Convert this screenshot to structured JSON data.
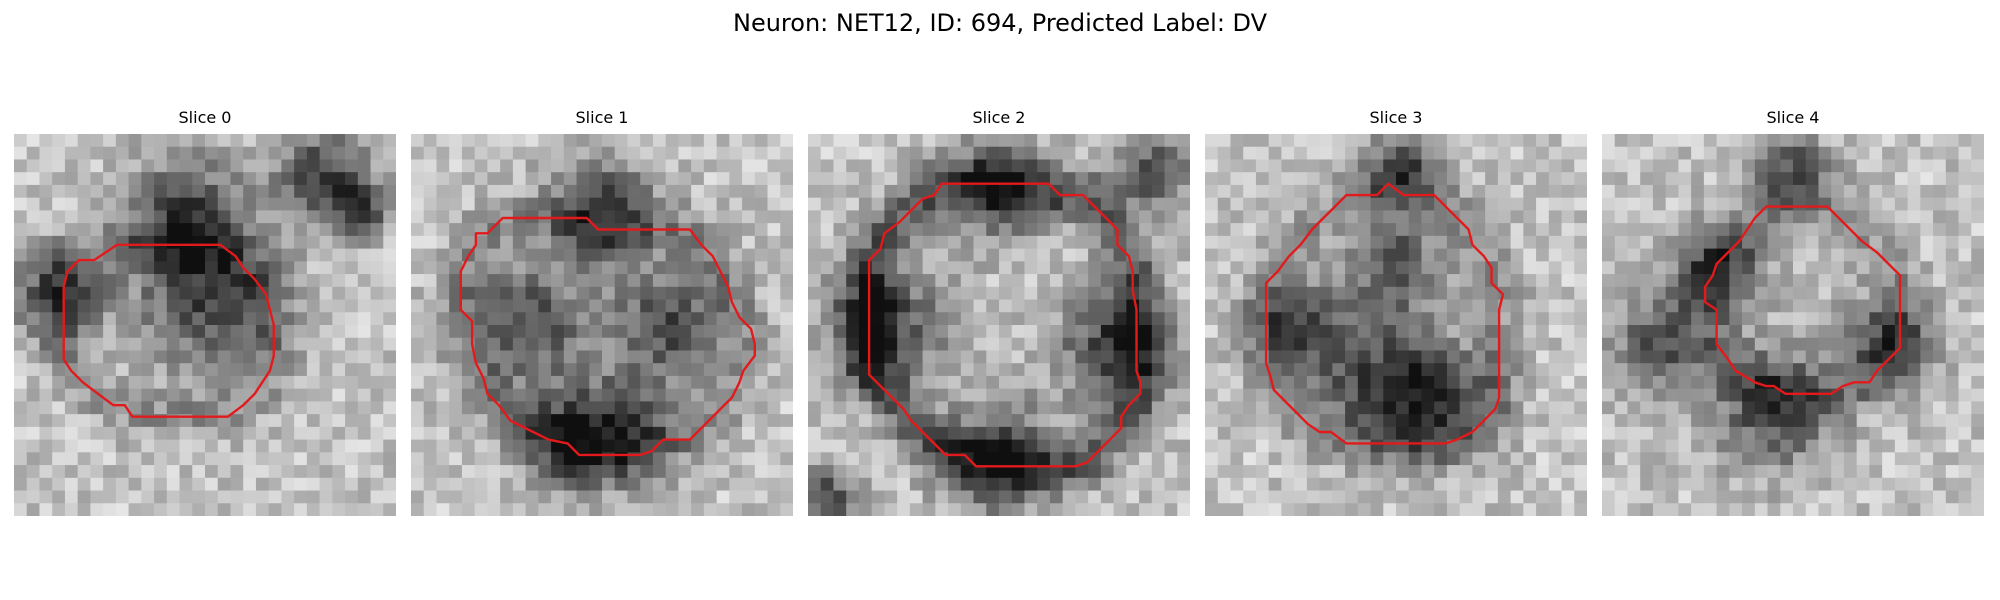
{
  "figure": {
    "title": "Neuron: NET12, ID: 694, Predicted Label: DV",
    "outline_color": "#e31a1c"
  },
  "slices": [
    {
      "title": "Slice 0",
      "image": "grayscale-microscopy-slice-0",
      "dark_spots": [
        [
          0.45,
          0.22,
          0.16
        ],
        [
          0.52,
          0.45,
          0.18
        ],
        [
          0.12,
          0.42,
          0.12
        ],
        [
          0.8,
          0.1,
          0.12
        ],
        [
          0.9,
          0.2,
          0.08
        ]
      ],
      "contour": [
        [
          0.27,
          0.29
        ],
        [
          0.54,
          0.29
        ],
        [
          0.58,
          0.32
        ],
        [
          0.6,
          0.35
        ],
        [
          0.63,
          0.38
        ],
        [
          0.66,
          0.42
        ],
        [
          0.67,
          0.46
        ],
        [
          0.68,
          0.5
        ],
        [
          0.68,
          0.54
        ],
        [
          0.68,
          0.58
        ],
        [
          0.67,
          0.62
        ],
        [
          0.65,
          0.65
        ],
        [
          0.63,
          0.68
        ],
        [
          0.6,
          0.71
        ],
        [
          0.56,
          0.74
        ],
        [
          0.5,
          0.74
        ],
        [
          0.45,
          0.74
        ],
        [
          0.38,
          0.74
        ],
        [
          0.31,
          0.74
        ],
        [
          0.29,
          0.71
        ],
        [
          0.26,
          0.71
        ],
        [
          0.22,
          0.68
        ],
        [
          0.18,
          0.65
        ],
        [
          0.15,
          0.62
        ],
        [
          0.13,
          0.59
        ],
        [
          0.13,
          0.56
        ],
        [
          0.13,
          0.52
        ],
        [
          0.13,
          0.48
        ],
        [
          0.13,
          0.44
        ],
        [
          0.13,
          0.4
        ],
        [
          0.14,
          0.36
        ],
        [
          0.17,
          0.33
        ],
        [
          0.21,
          0.33
        ],
        [
          0.24,
          0.31
        ]
      ]
    },
    {
      "title": "Slice 1",
      "image": "grayscale-microscopy-slice-1",
      "dark_spots": [
        [
          0.5,
          0.2,
          0.14
        ],
        [
          0.3,
          0.5,
          0.16
        ],
        [
          0.68,
          0.5,
          0.15
        ],
        [
          0.55,
          0.78,
          0.14
        ],
        [
          0.4,
          0.8,
          0.12
        ]
      ],
      "contour": [
        [
          0.24,
          0.22
        ],
        [
          0.46,
          0.22
        ],
        [
          0.49,
          0.25
        ],
        [
          0.73,
          0.25
        ],
        [
          0.76,
          0.29
        ],
        [
          0.79,
          0.32
        ],
        [
          0.81,
          0.36
        ],
        [
          0.83,
          0.4
        ],
        [
          0.84,
          0.44
        ],
        [
          0.86,
          0.48
        ],
        [
          0.89,
          0.51
        ],
        [
          0.9,
          0.55
        ],
        [
          0.9,
          0.58
        ],
        [
          0.87,
          0.62
        ],
        [
          0.86,
          0.65
        ],
        [
          0.84,
          0.69
        ],
        [
          0.81,
          0.72
        ],
        [
          0.78,
          0.75
        ],
        [
          0.75,
          0.78
        ],
        [
          0.73,
          0.8
        ],
        [
          0.66,
          0.8
        ],
        [
          0.63,
          0.83
        ],
        [
          0.6,
          0.84
        ],
        [
          0.44,
          0.84
        ],
        [
          0.41,
          0.81
        ],
        [
          0.36,
          0.8
        ],
        [
          0.32,
          0.78
        ],
        [
          0.26,
          0.75
        ],
        [
          0.23,
          0.71
        ],
        [
          0.2,
          0.68
        ],
        [
          0.19,
          0.64
        ],
        [
          0.17,
          0.6
        ],
        [
          0.16,
          0.55
        ],
        [
          0.16,
          0.49
        ],
        [
          0.13,
          0.46
        ],
        [
          0.13,
          0.41
        ],
        [
          0.13,
          0.36
        ],
        [
          0.15,
          0.32
        ],
        [
          0.17,
          0.29
        ],
        [
          0.17,
          0.26
        ],
        [
          0.2,
          0.26
        ]
      ]
    },
    {
      "title": "Slice 2",
      "image": "grayscale-microscopy-slice-2",
      "dark_spots": [
        [
          0.2,
          0.5,
          0.16
        ],
        [
          0.8,
          0.55,
          0.15
        ],
        [
          0.5,
          0.15,
          0.13
        ],
        [
          0.5,
          0.85,
          0.15
        ],
        [
          0.9,
          0.1,
          0.1
        ],
        [
          0.05,
          0.95,
          0.08
        ]
      ],
      "contour": [
        [
          0.35,
          0.13
        ],
        [
          0.63,
          0.13
        ],
        [
          0.66,
          0.16
        ],
        [
          0.72,
          0.16
        ],
        [
          0.75,
          0.19
        ],
        [
          0.78,
          0.22
        ],
        [
          0.81,
          0.25
        ],
        [
          0.81,
          0.29
        ],
        [
          0.84,
          0.32
        ],
        [
          0.85,
          0.36
        ],
        [
          0.85,
          0.41
        ],
        [
          0.86,
          0.46
        ],
        [
          0.86,
          0.5
        ],
        [
          0.86,
          0.56
        ],
        [
          0.86,
          0.62
        ],
        [
          0.87,
          0.65
        ],
        [
          0.87,
          0.68
        ],
        [
          0.84,
          0.71
        ],
        [
          0.82,
          0.74
        ],
        [
          0.82,
          0.77
        ],
        [
          0.79,
          0.8
        ],
        [
          0.76,
          0.83
        ],
        [
          0.73,
          0.86
        ],
        [
          0.7,
          0.87
        ],
        [
          0.44,
          0.87
        ],
        [
          0.41,
          0.84
        ],
        [
          0.36,
          0.84
        ],
        [
          0.33,
          0.81
        ],
        [
          0.3,
          0.78
        ],
        [
          0.27,
          0.75
        ],
        [
          0.25,
          0.72
        ],
        [
          0.22,
          0.69
        ],
        [
          0.19,
          0.66
        ],
        [
          0.16,
          0.63
        ],
        [
          0.16,
          0.6
        ],
        [
          0.16,
          0.55
        ],
        [
          0.16,
          0.49
        ],
        [
          0.16,
          0.44
        ],
        [
          0.16,
          0.39
        ],
        [
          0.16,
          0.33
        ],
        [
          0.19,
          0.3
        ],
        [
          0.2,
          0.26
        ],
        [
          0.24,
          0.23
        ],
        [
          0.27,
          0.2
        ],
        [
          0.3,
          0.17
        ],
        [
          0.33,
          0.16
        ]
      ]
    },
    {
      "title": "Slice 3",
      "image": "grayscale-microscopy-slice-3",
      "dark_spots": [
        [
          0.52,
          0.1,
          0.1
        ],
        [
          0.45,
          0.65,
          0.16
        ],
        [
          0.62,
          0.7,
          0.14
        ],
        [
          0.25,
          0.5,
          0.12
        ],
        [
          0.5,
          0.35,
          0.12
        ]
      ],
      "contour": [
        [
          0.37,
          0.16
        ],
        [
          0.45,
          0.16
        ],
        [
          0.48,
          0.13
        ],
        [
          0.52,
          0.16
        ],
        [
          0.6,
          0.16
        ],
        [
          0.63,
          0.19
        ],
        [
          0.66,
          0.22
        ],
        [
          0.69,
          0.25
        ],
        [
          0.7,
          0.29
        ],
        [
          0.73,
          0.32
        ],
        [
          0.75,
          0.35
        ],
        [
          0.75,
          0.39
        ],
        [
          0.78,
          0.42
        ],
        [
          0.77,
          0.46
        ],
        [
          0.77,
          0.51
        ],
        [
          0.77,
          0.56
        ],
        [
          0.77,
          0.61
        ],
        [
          0.77,
          0.65
        ],
        [
          0.77,
          0.69
        ],
        [
          0.76,
          0.72
        ],
        [
          0.73,
          0.75
        ],
        [
          0.7,
          0.78
        ],
        [
          0.66,
          0.8
        ],
        [
          0.63,
          0.81
        ],
        [
          0.58,
          0.81
        ],
        [
          0.52,
          0.81
        ],
        [
          0.46,
          0.81
        ],
        [
          0.37,
          0.81
        ],
        [
          0.33,
          0.78
        ],
        [
          0.3,
          0.78
        ],
        [
          0.27,
          0.76
        ],
        [
          0.24,
          0.73
        ],
        [
          0.21,
          0.7
        ],
        [
          0.18,
          0.67
        ],
        [
          0.17,
          0.63
        ],
        [
          0.16,
          0.6
        ],
        [
          0.16,
          0.55
        ],
        [
          0.16,
          0.5
        ],
        [
          0.16,
          0.44
        ],
        [
          0.16,
          0.39
        ],
        [
          0.19,
          0.36
        ],
        [
          0.22,
          0.32
        ],
        [
          0.25,
          0.29
        ],
        [
          0.28,
          0.25
        ],
        [
          0.31,
          0.22
        ],
        [
          0.34,
          0.19
        ]
      ]
    },
    {
      "title": "Slice 4",
      "image": "grayscale-microscopy-slice-4",
      "dark_spots": [
        [
          0.5,
          0.1,
          0.1
        ],
        [
          0.15,
          0.55,
          0.12
        ],
        [
          0.75,
          0.55,
          0.12
        ],
        [
          0.45,
          0.72,
          0.16
        ],
        [
          0.3,
          0.35,
          0.12
        ]
      ],
      "contour": [
        [
          0.43,
          0.19
        ],
        [
          0.59,
          0.19
        ],
        [
          0.62,
          0.22
        ],
        [
          0.65,
          0.25
        ],
        [
          0.68,
          0.28
        ],
        [
          0.72,
          0.31
        ],
        [
          0.75,
          0.34
        ],
        [
          0.78,
          0.37
        ],
        [
          0.78,
          0.42
        ],
        [
          0.78,
          0.47
        ],
        [
          0.78,
          0.52
        ],
        [
          0.78,
          0.56
        ],
        [
          0.75,
          0.59
        ],
        [
          0.72,
          0.62
        ],
        [
          0.7,
          0.65
        ],
        [
          0.66,
          0.65
        ],
        [
          0.63,
          0.66
        ],
        [
          0.6,
          0.68
        ],
        [
          0.55,
          0.68
        ],
        [
          0.48,
          0.68
        ],
        [
          0.45,
          0.66
        ],
        [
          0.43,
          0.66
        ],
        [
          0.4,
          0.65
        ],
        [
          0.35,
          0.62
        ],
        [
          0.33,
          0.59
        ],
        [
          0.3,
          0.55
        ],
        [
          0.3,
          0.5
        ],
        [
          0.3,
          0.46
        ],
        [
          0.27,
          0.44
        ],
        [
          0.27,
          0.42
        ],
        [
          0.27,
          0.4
        ],
        [
          0.29,
          0.37
        ],
        [
          0.3,
          0.34
        ],
        [
          0.33,
          0.31
        ],
        [
          0.36,
          0.28
        ],
        [
          0.38,
          0.25
        ],
        [
          0.4,
          0.22
        ]
      ]
    }
  ]
}
